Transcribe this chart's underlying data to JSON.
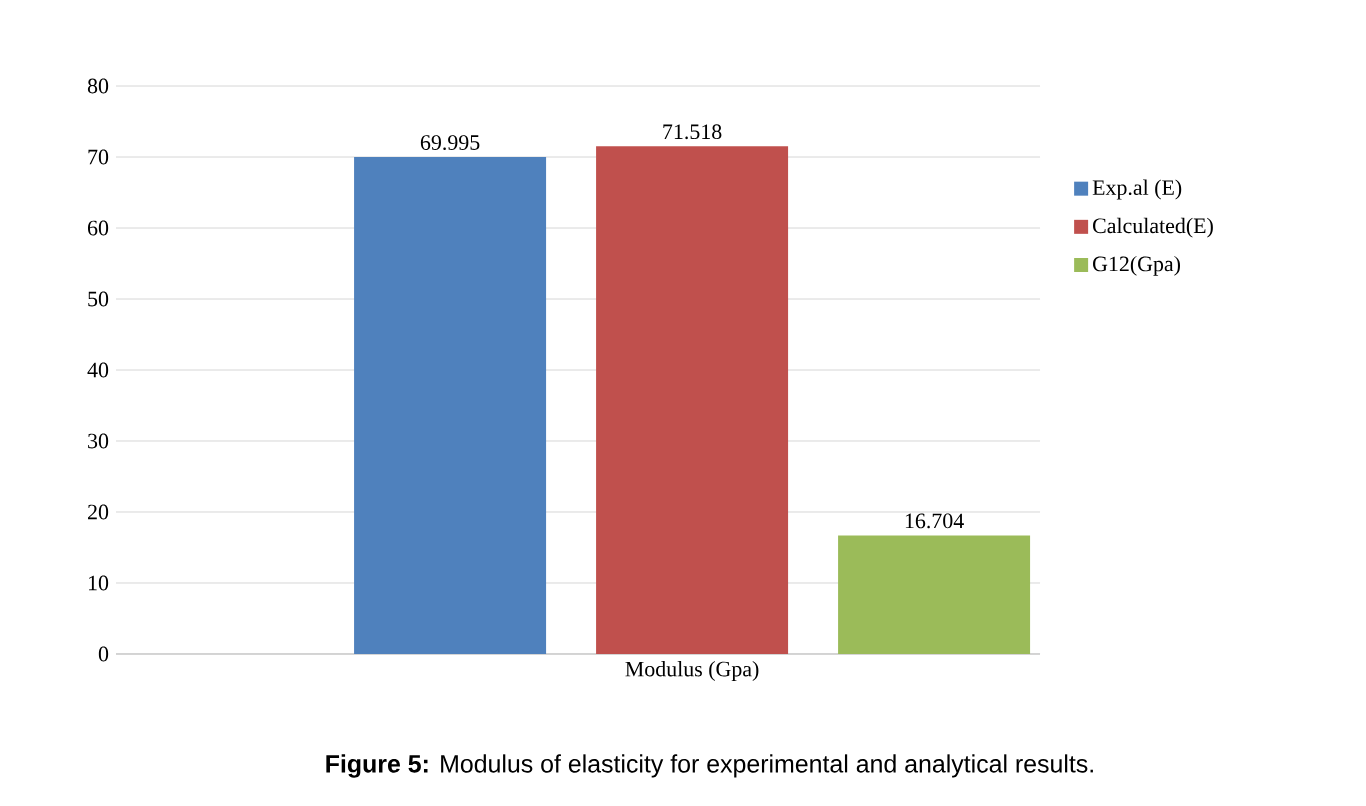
{
  "chart_data": {
    "type": "bar",
    "categories": [
      "Modulus (Gpa)"
    ],
    "series": [
      {
        "name": "Exp.al (E)",
        "color": "#4f81bd",
        "values": [
          69.995
        ]
      },
      {
        "name": "Calculated(E)",
        "color": "#c0504d",
        "values": [
          71.518
        ]
      },
      {
        "name": "G12(Gpa)",
        "color": "#9bbb59",
        "values": [
          16.704
        ]
      }
    ],
    "ylim": [
      0,
      80
    ],
    "yticks": [
      0,
      10,
      20,
      30,
      40,
      50,
      60,
      70,
      80
    ],
    "grid": "y",
    "legend": "right",
    "data_labels": true,
    "annotations": [
      "**Figure 5:** Modulus of elasticity for experimental and analytical results."
    ]
  }
}
